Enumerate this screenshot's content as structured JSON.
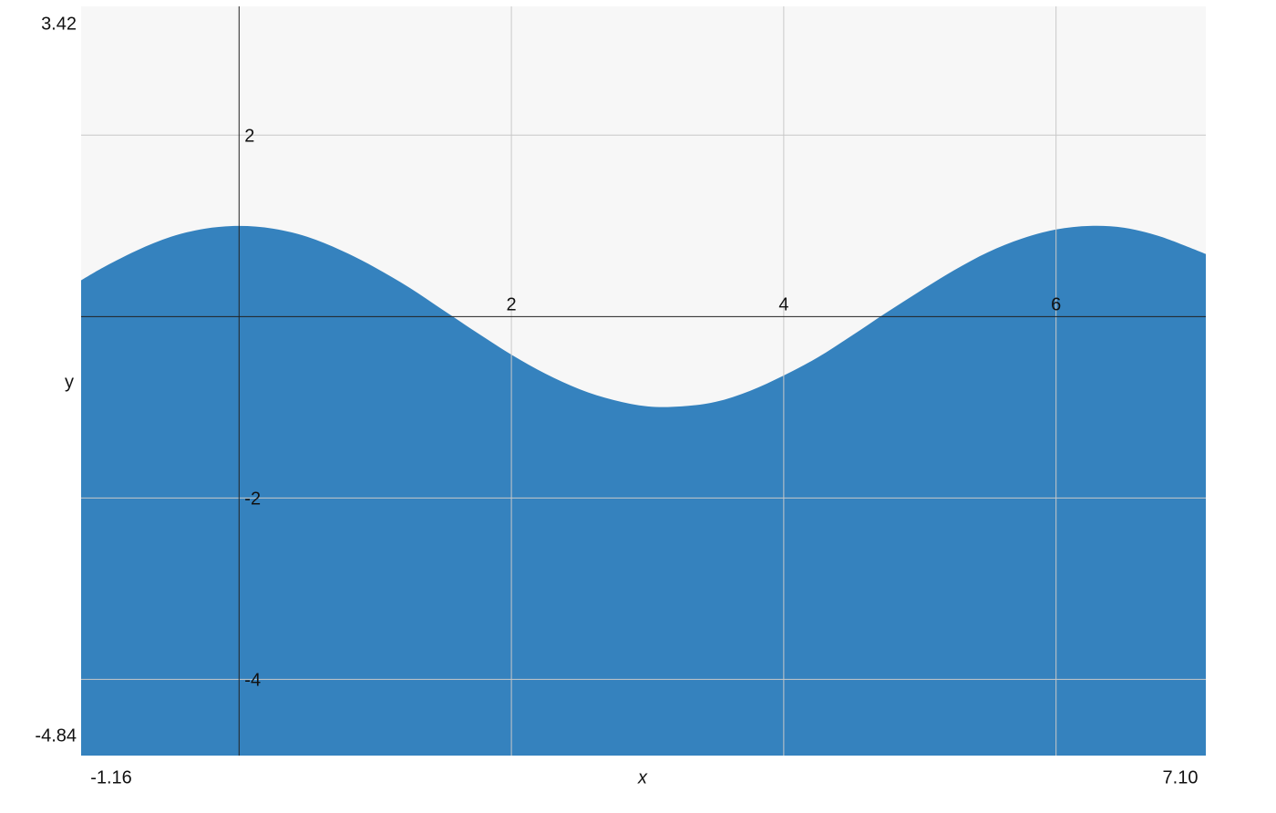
{
  "chart_data": {
    "type": "area",
    "x": [
      -1.16,
      -1,
      -0.75,
      -0.5,
      -0.25,
      0,
      0.25,
      0.5,
      0.75,
      1,
      1.25,
      1.5,
      1.75,
      2,
      2.25,
      2.5,
      2.75,
      3,
      3.25,
      3.5,
      3.75,
      4,
      4.25,
      4.5,
      4.75,
      5,
      5.25,
      5.5,
      5.75,
      6,
      6.25,
      6.5,
      6.75,
      7,
      7.1
    ],
    "values": [
      0.4,
      0.54,
      0.73,
      0.88,
      0.97,
      1,
      0.97,
      0.88,
      0.73,
      0.54,
      0.32,
      0.07,
      -0.18,
      -0.42,
      -0.63,
      -0.8,
      -0.92,
      -0.99,
      -0.99,
      -0.94,
      -0.82,
      -0.65,
      -0.45,
      -0.21,
      0.04,
      0.28,
      0.51,
      0.71,
      0.86,
      0.96,
      1,
      0.98,
      0.89,
      0.75,
      0.69
    ],
    "color": "#3582be",
    "xlim": [
      -1.16,
      7.1
    ],
    "xlim_labels": [
      "-1.16",
      "7.10"
    ],
    "ylim": [
      -4.84,
      3.42
    ],
    "ylim_labels": [
      "-4.84",
      "3.42"
    ],
    "xticks": [
      2,
      4,
      6
    ],
    "yticks": [
      2,
      -2,
      -4
    ],
    "xlabel": "x",
    "ylabel": "y",
    "grid": true
  }
}
